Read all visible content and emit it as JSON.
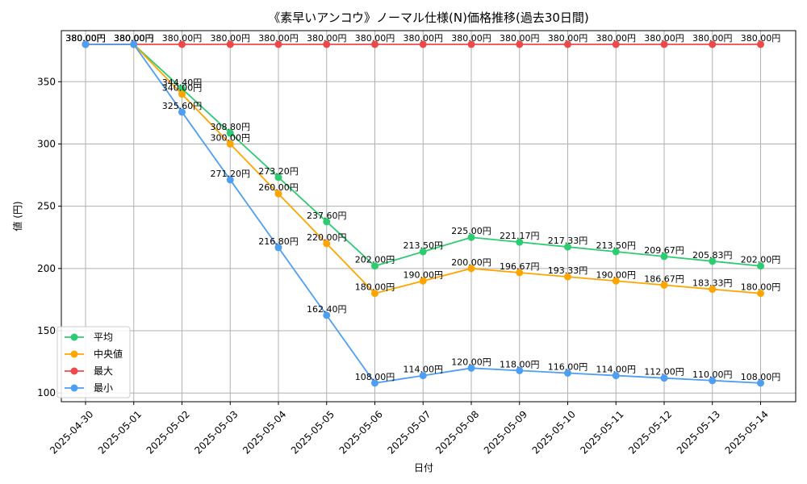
{
  "chart_data": {
    "type": "line",
    "title": "《素早いアンコウ》ノーマル仕様(N)価格推移(過去30日間)",
    "xlabel": "日付",
    "ylabel": "値 (円)",
    "categories": [
      "2025-04-30",
      "2025-05-01",
      "2025-05-02",
      "2025-05-03",
      "2025-05-04",
      "2025-05-05",
      "2025-05-06",
      "2025-05-07",
      "2025-05-08",
      "2025-05-09",
      "2025-05-10",
      "2025-05-11",
      "2025-05-12",
      "2025-05-13",
      "2025-05-14"
    ],
    "ylim": [
      93,
      391
    ],
    "yticks": [
      100,
      150,
      200,
      250,
      300,
      350
    ],
    "grid": true,
    "legend_position": "lower-left",
    "series": [
      {
        "name": "平均",
        "color": "#2ecc71",
        "values": [
          380.0,
          380.0,
          344.4,
          308.8,
          273.2,
          237.6,
          202.0,
          213.5,
          225.0,
          221.17,
          217.33,
          213.5,
          209.67,
          205.83,
          202.0
        ],
        "labels": [
          "380.00円",
          "380.00円",
          "344.40円",
          "308.80円",
          "273.20円",
          "237.60円",
          "202.00円",
          "213.50円",
          "225.00円",
          "221.17円",
          "217.33円",
          "213.50円",
          "209.67円",
          "205.83円",
          "202.00円"
        ]
      },
      {
        "name": "中央値",
        "color": "#ffa500",
        "values": [
          380.0,
          380.0,
          340.0,
          300.0,
          260.0,
          220.0,
          180.0,
          190.0,
          200.0,
          196.67,
          193.33,
          190.0,
          186.67,
          183.33,
          180.0
        ],
        "labels": [
          "380.00円",
          "380.00円",
          "340.00円",
          "300.00円",
          "260.00円",
          "220.00円",
          "180.00円",
          "190.00円",
          "200.00円",
          "196.67円",
          "193.33円",
          "190.00円",
          "186.67円",
          "183.33円",
          "180.00円"
        ]
      },
      {
        "name": "最大",
        "color": "#f04848",
        "values": [
          380.0,
          380.0,
          380.0,
          380.0,
          380.0,
          380.0,
          380.0,
          380.0,
          380.0,
          380.0,
          380.0,
          380.0,
          380.0,
          380.0,
          380.0
        ],
        "labels": [
          "380.00円",
          "380.00円",
          "380.00円",
          "380.00円",
          "380.00円",
          "380.00円",
          "380.00円",
          "380.00円",
          "380.00円",
          "380.00円",
          "380.00円",
          "380.00円",
          "380.00円",
          "380.00円",
          "380.00円"
        ]
      },
      {
        "name": "最小",
        "color": "#4d9ef5",
        "values": [
          380.0,
          380.0,
          325.6,
          271.2,
          216.8,
          162.4,
          108.0,
          114.0,
          120.0,
          118.0,
          116.0,
          114.0,
          112.0,
          110.0,
          108.0
        ],
        "labels": [
          "380.00円",
          "380.00円",
          "325.60円",
          "271.20円",
          "216.80円",
          "162.40円",
          "108.00円",
          "114.00円",
          "120.00円",
          "118.00円",
          "116.00円",
          "114.00円",
          "112.00円",
          "110.00円",
          "108.00円"
        ]
      }
    ]
  }
}
